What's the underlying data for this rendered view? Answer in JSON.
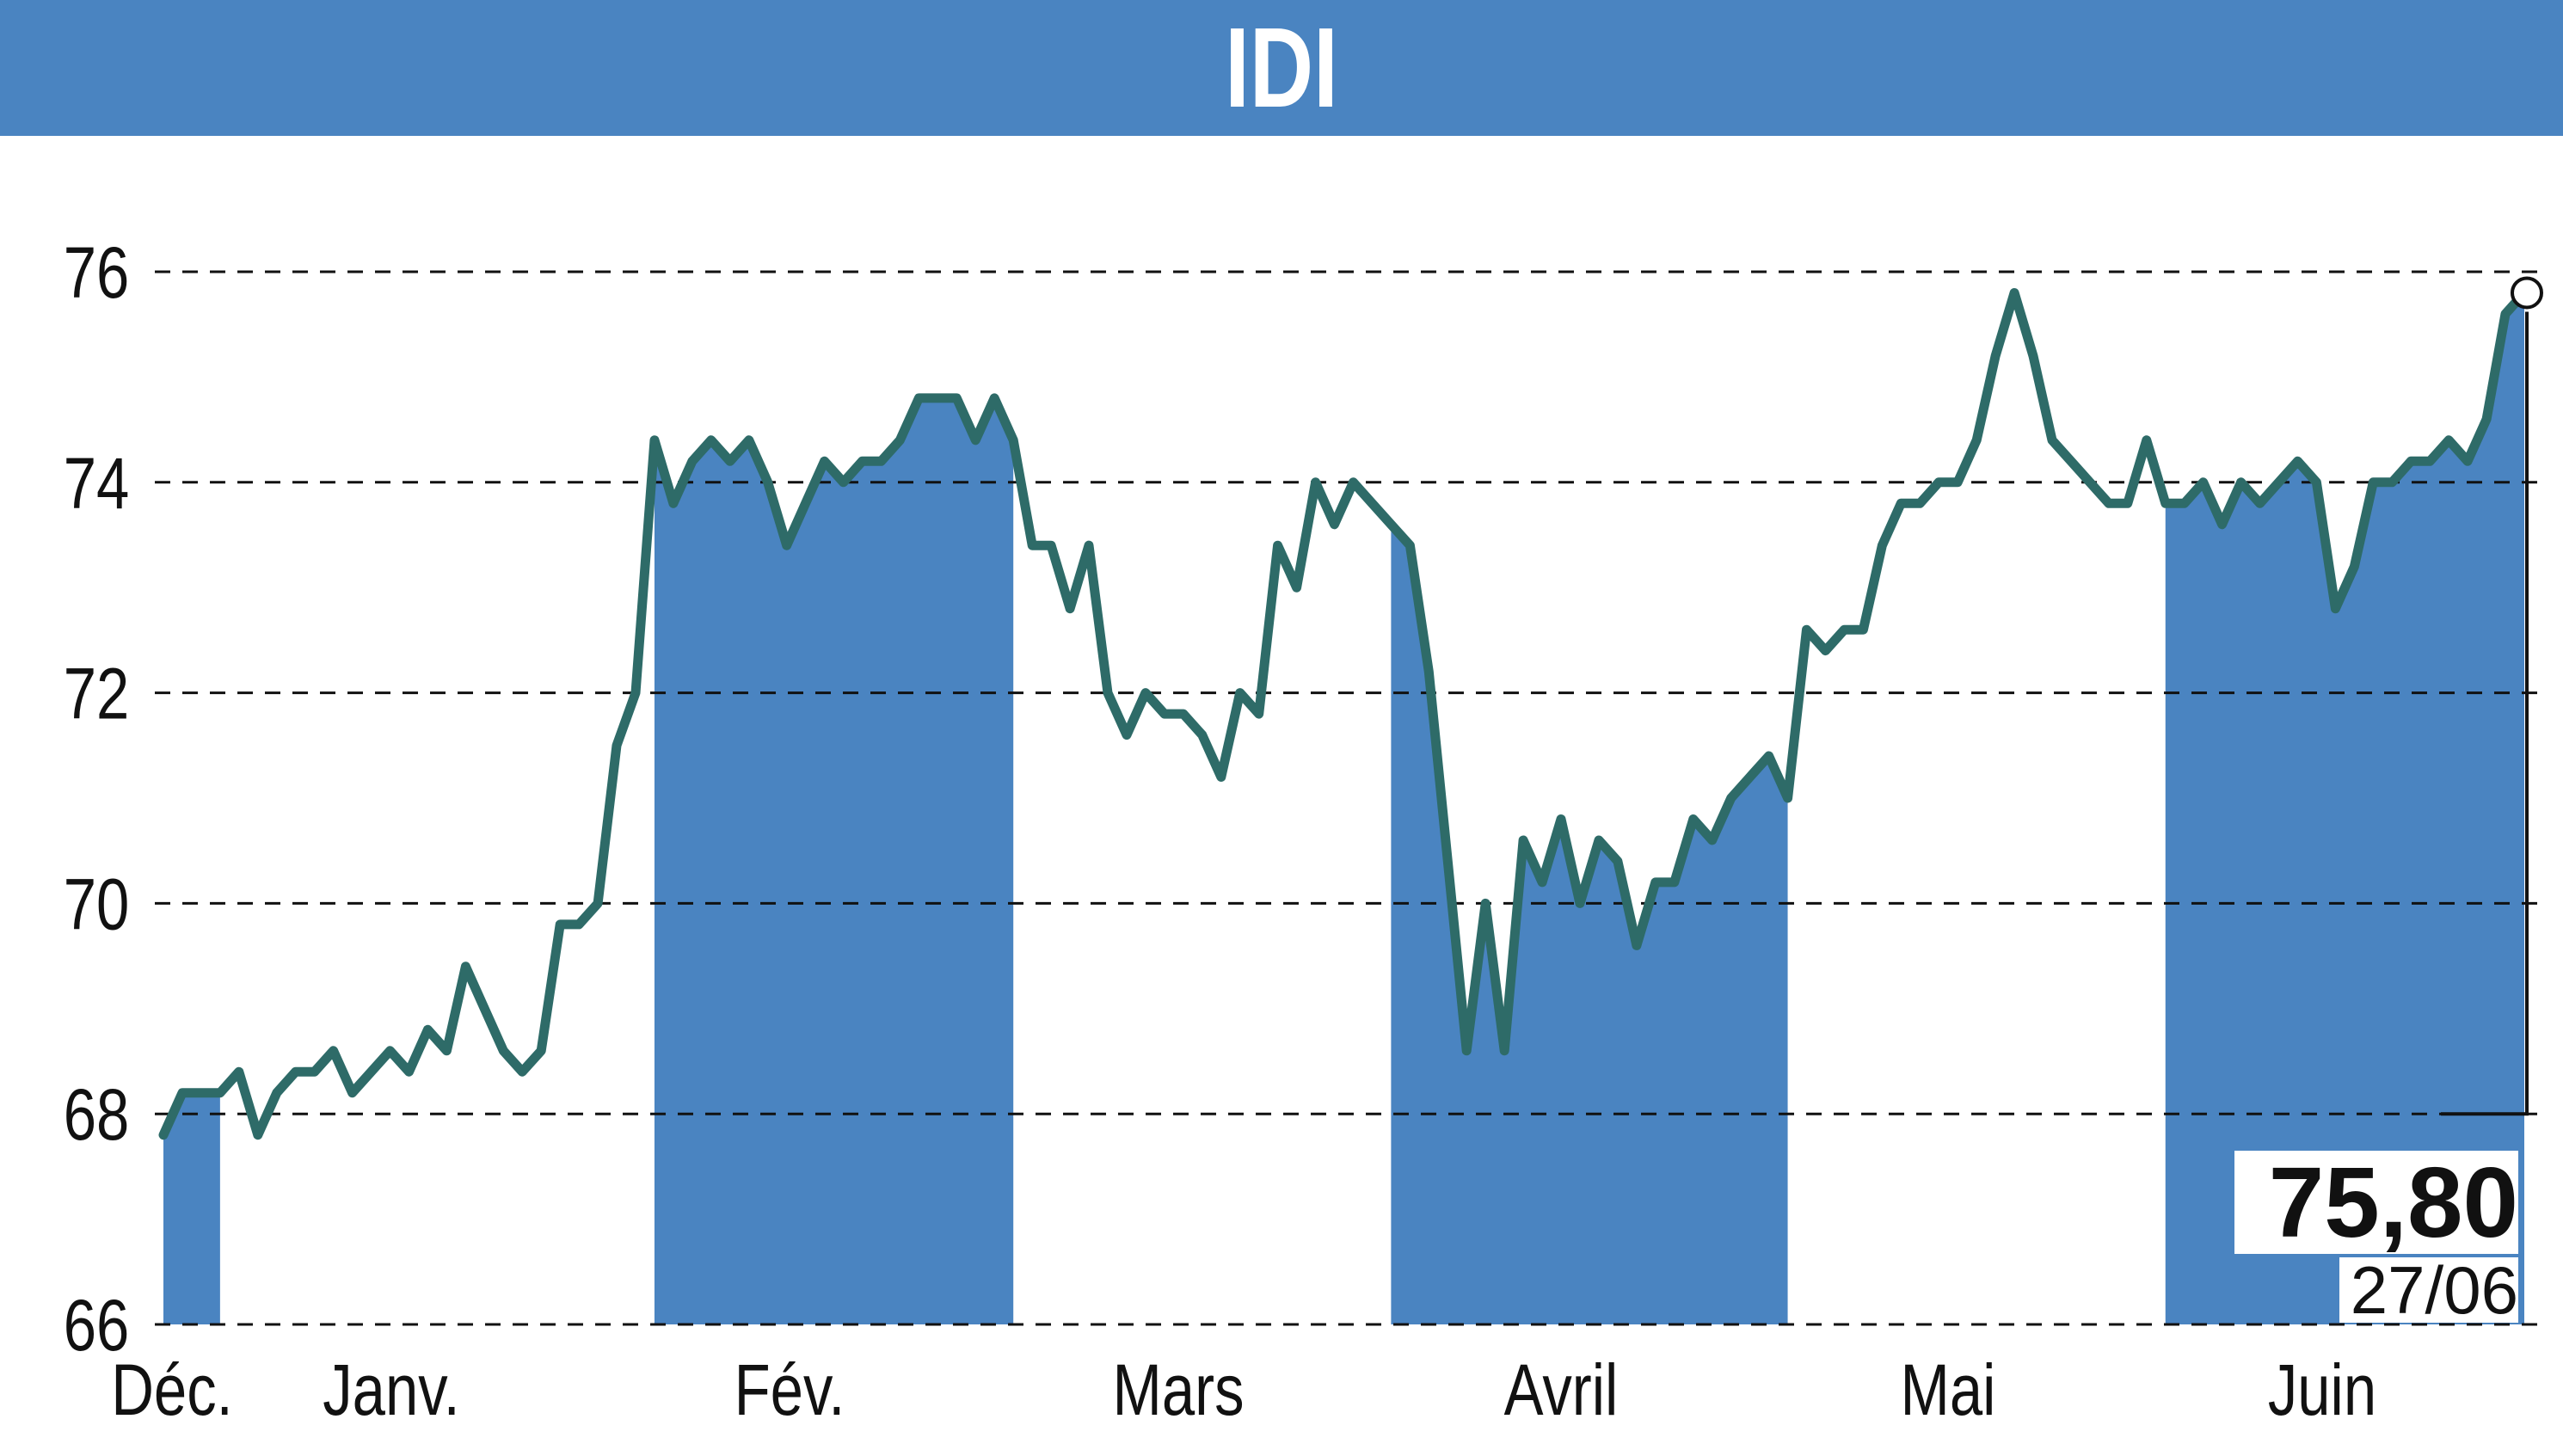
{
  "title": "IDI",
  "last_value": {
    "price": "75,80",
    "date": "27/06"
  },
  "colors": {
    "accent": "#4a84c1",
    "line": "#2e6b68",
    "grid": "#111111",
    "bar": "#4a84c1"
  },
  "chart_data": {
    "type": "line",
    "title": "IDI",
    "xlabel": "",
    "ylabel": "",
    "ylim": [
      66,
      76
    ],
    "yticks": [
      66,
      68,
      70,
      72,
      74,
      76
    ],
    "ytick_labels": [
      "66",
      "68",
      "70",
      "72",
      "74",
      "76"
    ],
    "grid": "horizontal dashed",
    "months": [
      "Déc.",
      "Janv.",
      "Fév.",
      "Mars",
      "Avril",
      "Mai",
      "Juin"
    ],
    "shaded_months": [
      "Déc.",
      "Fév.",
      "Avril",
      "Juin"
    ],
    "series": [
      {
        "values": [
          67.8,
          68.2,
          68.2,
          68.2,
          68.4,
          67.8,
          68.2,
          68.4,
          68.4,
          68.6,
          68.2,
          68.4,
          68.6,
          68.4,
          68.8,
          68.6,
          69.4,
          69.0,
          68.6,
          68.4,
          68.6,
          69.8,
          69.8,
          70.0,
          71.5,
          72.0,
          74.4,
          73.8,
          74.2,
          74.4,
          74.2,
          74.4,
          74.0,
          73.4,
          73.8,
          74.2,
          74.0,
          74.2,
          74.2,
          74.4,
          74.8,
          74.8,
          74.8,
          74.4,
          74.8,
          74.4,
          73.4,
          73.4,
          72.8,
          73.4,
          72.0,
          71.6,
          72.0,
          71.8,
          71.8,
          71.6,
          71.2,
          72.0,
          71.8,
          73.4,
          73.0,
          74.0,
          73.6,
          74.0,
          73.8,
          73.6,
          73.4,
          72.2,
          70.4,
          68.6,
          70.0,
          68.6,
          70.6,
          70.2,
          70.8,
          70.0,
          70.6,
          70.4,
          69.6,
          70.2,
          70.2,
          70.8,
          70.6,
          71.0,
          71.2,
          71.4,
          71.0,
          72.6,
          72.4,
          72.6,
          72.6,
          73.4,
          73.8,
          73.8,
          74.0,
          74.0,
          74.4,
          75.2,
          75.8,
          75.2,
          74.4,
          74.2,
          74.0,
          73.8,
          73.8,
          74.4,
          73.8,
          73.8,
          74.0,
          73.6,
          74.0,
          73.8,
          74.0,
          74.2,
          74.0,
          72.8,
          73.2,
          74.0,
          74.0,
          74.2,
          74.2,
          74.4,
          74.2,
          74.6,
          75.6,
          75.8
        ]
      }
    ],
    "shaded_index_ranges": [
      [
        0,
        3
      ],
      [
        26,
        45
      ],
      [
        65,
        86
      ],
      [
        106,
        125
      ]
    ],
    "annotation": {
      "value": "75,80",
      "date": "27/06"
    }
  }
}
